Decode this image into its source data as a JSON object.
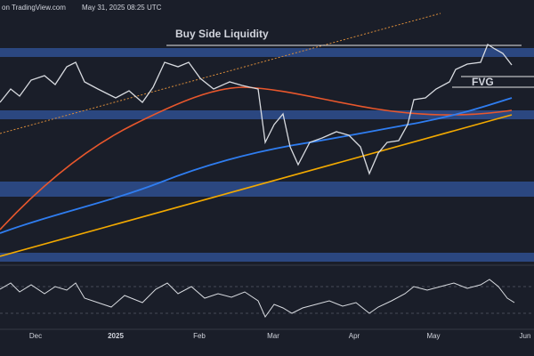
{
  "header": {
    "source": "on TradingView.com",
    "timestamp": "May 31, 2025 08:25 UTC"
  },
  "annotations": [
    "Buy Side Liquidity",
    "FVG"
  ],
  "x_axis": {
    "labels": [
      "Dec",
      "2025",
      "Feb",
      "Mar",
      "Apr",
      "May",
      "Jun"
    ]
  }
}
